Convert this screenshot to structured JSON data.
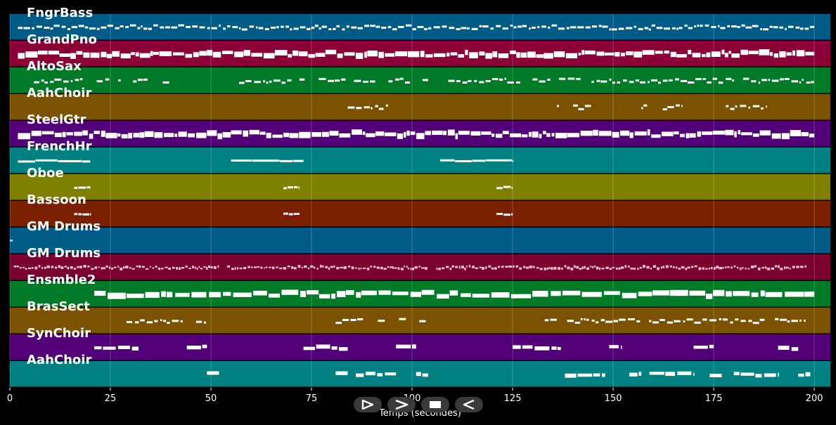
{
  "chart_data": {
    "type": "piano-roll",
    "xlabel": "Temps (secondes)",
    "xlim": [
      0,
      204
    ],
    "xticks": [
      0,
      25,
      50,
      75,
      100,
      125,
      150,
      175,
      200
    ],
    "grid": true,
    "tracks": [
      {
        "name": "FngrBass",
        "color": "#005c87",
        "pattern": "dense_thin",
        "segments": [
          [
            2,
            200
          ]
        ]
      },
      {
        "name": "GrandPno",
        "color": "#8c0038",
        "pattern": "dense_thick",
        "segments": [
          [
            2,
            200
          ]
        ]
      },
      {
        "name": "AltoSax",
        "color": "#007a26",
        "pattern": "phrases",
        "segments": [
          [
            6,
            40
          ],
          [
            57,
            70
          ],
          [
            72,
            104
          ],
          [
            109,
            200
          ]
        ]
      },
      {
        "name": "AahChoir",
        "color": "#7a5200",
        "pattern": "phrases",
        "segments": [
          [
            84,
            94
          ],
          [
            136,
            147
          ],
          [
            157,
            167
          ],
          [
            178,
            188
          ]
        ]
      },
      {
        "name": "SteelGtr",
        "color": "#520078",
        "pattern": "dense_thick",
        "segments": [
          [
            2,
            200
          ]
        ]
      },
      {
        "name": "FrenchHr",
        "color": "#008080",
        "pattern": "long",
        "segments": [
          [
            2,
            20
          ],
          [
            55,
            73
          ],
          [
            107,
            125
          ]
        ]
      },
      {
        "name": "Oboe",
        "color": "#808000",
        "pattern": "short",
        "segments": [
          [
            16,
            20
          ],
          [
            68,
            72
          ],
          [
            121,
            125
          ]
        ]
      },
      {
        "name": "Bassoon",
        "color": "#7a2000",
        "pattern": "short",
        "segments": [
          [
            16,
            20
          ],
          [
            68,
            72
          ],
          [
            121,
            125
          ]
        ]
      },
      {
        "name": "GM Drums",
        "color": "#005c87",
        "pattern": "dot",
        "segments": [
          [
            0,
            1
          ]
        ]
      },
      {
        "name": "GM Drums",
        "color": "#7a0030",
        "pattern": "drum",
        "segments": [
          [
            1,
            52
          ],
          [
            54,
            104
          ],
          [
            106,
            198
          ]
        ]
      },
      {
        "name": "Ensmble2",
        "color": "#007a26",
        "pattern": "chords",
        "segments": [
          [
            21,
            200
          ]
        ]
      },
      {
        "name": "BrasSect",
        "color": "#7a5200",
        "pattern": "phrases",
        "segments": [
          [
            29,
            52
          ],
          [
            81,
            104
          ],
          [
            133,
            198
          ]
        ]
      },
      {
        "name": "SynChoir",
        "color": "#520078",
        "pattern": "sparse",
        "segments": [
          [
            21,
            32
          ],
          [
            44,
            49
          ],
          [
            73,
            84
          ],
          [
            96,
            101
          ],
          [
            125,
            137
          ],
          [
            149,
            152
          ],
          [
            170,
            175
          ],
          [
            191,
            196
          ]
        ]
      },
      {
        "name": "AahChoir",
        "color": "#008080",
        "pattern": "sparse",
        "segments": [
          [
            49,
            52
          ],
          [
            81,
            84
          ],
          [
            86,
            96
          ],
          [
            101,
            104
          ],
          [
            138,
            148
          ],
          [
            154,
            157
          ],
          [
            159,
            170
          ],
          [
            174,
            177
          ],
          [
            180,
            191
          ],
          [
            196,
            199
          ]
        ]
      }
    ]
  },
  "controls": [
    {
      "name": "play-icon"
    },
    {
      "name": "next-icon"
    },
    {
      "name": "stop-icon"
    },
    {
      "name": "rewind-icon"
    }
  ]
}
